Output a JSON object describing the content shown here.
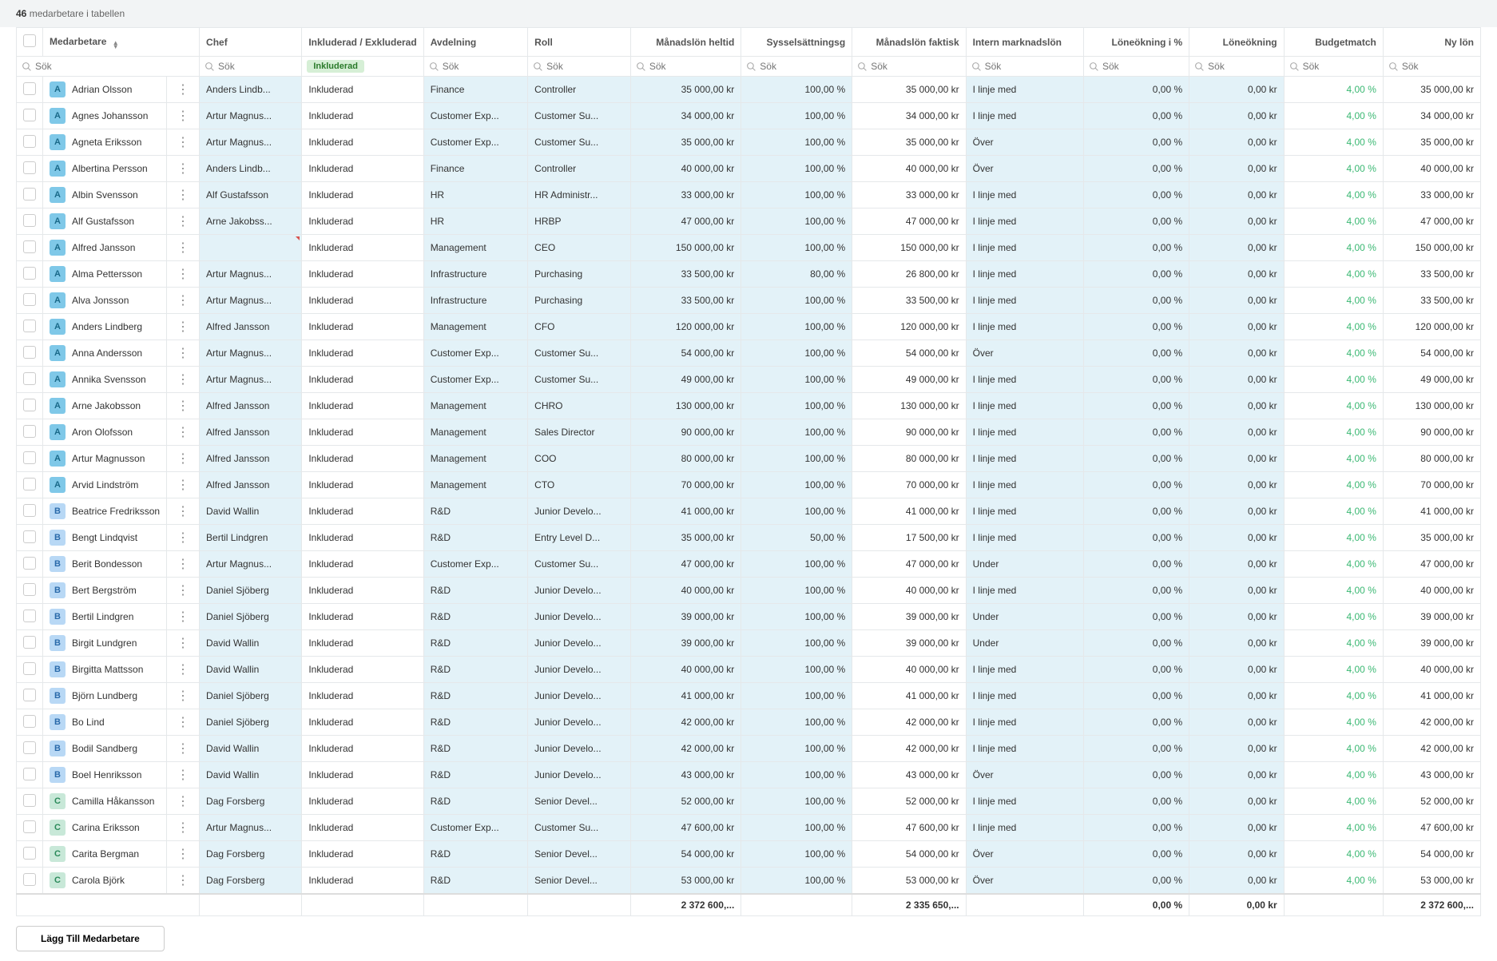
{
  "topbar": {
    "count": "46",
    "text": "medarbetare i tabellen"
  },
  "columns": [
    "Medarbetare",
    "Chef",
    "Inkluderad / Exkluderad",
    "Avdelning",
    "Roll",
    "Månadslön heltid",
    "Sysselsättningsg",
    "Månadslön faktisk",
    "Intern marknadslön",
    "Löneökning i %",
    "Löneökning",
    "Budgetmatch",
    "Ny lön"
  ],
  "search_placeholder": "Sök",
  "include_filter_label": "Inkluderad",
  "add_button": "Lägg Till Medarbetare",
  "totals": {
    "heltid": "2 372 600,...",
    "faktisk": "2 335 650,...",
    "pct": "0,00 %",
    "kr": "0,00 kr",
    "ny": "2 372 600,..."
  },
  "rows": [
    {
      "i": "A",
      "n": "Adrian Olsson",
      "c": "Anders Lindb...",
      "d": "Finance",
      "r": "Controller",
      "h": "35 000,00 kr",
      "s": "100,00 %",
      "f": "35 000,00 kr",
      "m": "I linje med",
      "p": "0,00 %",
      "k": "0,00 kr",
      "b": "4,00 %",
      "ny": "35 000,00 kr"
    },
    {
      "i": "A",
      "n": "Agnes Johansson",
      "c": "Artur Magnus...",
      "d": "Customer Exp...",
      "r": "Customer Su...",
      "h": "34 000,00 kr",
      "s": "100,00 %",
      "f": "34 000,00 kr",
      "m": "I linje med",
      "p": "0,00 %",
      "k": "0,00 kr",
      "b": "4,00 %",
      "ny": "34 000,00 kr"
    },
    {
      "i": "A",
      "n": "Agneta Eriksson",
      "c": "Artur Magnus...",
      "d": "Customer Exp...",
      "r": "Customer Su...",
      "h": "35 000,00 kr",
      "s": "100,00 %",
      "f": "35 000,00 kr",
      "m": "Över",
      "p": "0,00 %",
      "k": "0,00 kr",
      "b": "4,00 %",
      "ny": "35 000,00 kr"
    },
    {
      "i": "A",
      "n": "Albertina Persson",
      "c": "Anders Lindb...",
      "d": "Finance",
      "r": "Controller",
      "h": "40 000,00 kr",
      "s": "100,00 %",
      "f": "40 000,00 kr",
      "m": "Över",
      "p": "0,00 %",
      "k": "0,00 kr",
      "b": "4,00 %",
      "ny": "40 000,00 kr"
    },
    {
      "i": "A",
      "n": "Albin Svensson",
      "c": "Alf Gustafsson",
      "d": "HR",
      "r": "HR Administr...",
      "h": "33 000,00 kr",
      "s": "100,00 %",
      "f": "33 000,00 kr",
      "m": "I linje med",
      "p": "0,00 %",
      "k": "0,00 kr",
      "b": "4,00 %",
      "ny": "33 000,00 kr"
    },
    {
      "i": "A",
      "n": "Alf Gustafsson",
      "c": "Arne Jakobss...",
      "d": "HR",
      "r": "HRBP",
      "h": "47 000,00 kr",
      "s": "100,00 %",
      "f": "47 000,00 kr",
      "m": "I linje med",
      "p": "0,00 %",
      "k": "0,00 kr",
      "b": "4,00 %",
      "ny": "47 000,00 kr"
    },
    {
      "i": "A",
      "n": "Alfred Jansson",
      "c": "",
      "d": "Management",
      "r": "CEO",
      "h": "150 000,00 kr",
      "s": "100,00 %",
      "f": "150 000,00 kr",
      "m": "I linje med",
      "p": "0,00 %",
      "k": "0,00 kr",
      "b": "4,00 %",
      "ny": "150 000,00 kr",
      "ec": true
    },
    {
      "i": "A",
      "n": "Alma Pettersson",
      "c": "Artur Magnus...",
      "d": "Infrastructure",
      "r": "Purchasing",
      "h": "33 500,00 kr",
      "s": "80,00 %",
      "f": "26 800,00 kr",
      "m": "I linje med",
      "p": "0,00 %",
      "k": "0,00 kr",
      "b": "4,00 %",
      "ny": "33 500,00 kr"
    },
    {
      "i": "A",
      "n": "Alva Jonsson",
      "c": "Artur Magnus...",
      "d": "Infrastructure",
      "r": "Purchasing",
      "h": "33 500,00 kr",
      "s": "100,00 %",
      "f": "33 500,00 kr",
      "m": "I linje med",
      "p": "0,00 %",
      "k": "0,00 kr",
      "b": "4,00 %",
      "ny": "33 500,00 kr"
    },
    {
      "i": "A",
      "n": "Anders Lindberg",
      "c": "Alfred Jansson",
      "d": "Management",
      "r": "CFO",
      "h": "120 000,00 kr",
      "s": "100,00 %",
      "f": "120 000,00 kr",
      "m": "I linje med",
      "p": "0,00 %",
      "k": "0,00 kr",
      "b": "4,00 %",
      "ny": "120 000,00 kr"
    },
    {
      "i": "A",
      "n": "Anna Andersson",
      "c": "Artur Magnus...",
      "d": "Customer Exp...",
      "r": "Customer Su...",
      "h": "54 000,00 kr",
      "s": "100,00 %",
      "f": "54 000,00 kr",
      "m": "Över",
      "p": "0,00 %",
      "k": "0,00 kr",
      "b": "4,00 %",
      "ny": "54 000,00 kr"
    },
    {
      "i": "A",
      "n": "Annika Svensson",
      "c": "Artur Magnus...",
      "d": "Customer Exp...",
      "r": "Customer Su...",
      "h": "49 000,00 kr",
      "s": "100,00 %",
      "f": "49 000,00 kr",
      "m": "I linje med",
      "p": "0,00 %",
      "k": "0,00 kr",
      "b": "4,00 %",
      "ny": "49 000,00 kr"
    },
    {
      "i": "A",
      "n": "Arne Jakobsson",
      "c": "Alfred Jansson",
      "d": "Management",
      "r": "CHRO",
      "h": "130 000,00 kr",
      "s": "100,00 %",
      "f": "130 000,00 kr",
      "m": "I linje med",
      "p": "0,00 %",
      "k": "0,00 kr",
      "b": "4,00 %",
      "ny": "130 000,00 kr"
    },
    {
      "i": "A",
      "n": "Aron Olofsson",
      "c": "Alfred Jansson",
      "d": "Management",
      "r": "Sales Director",
      "h": "90 000,00 kr",
      "s": "100,00 %",
      "f": "90 000,00 kr",
      "m": "I linje med",
      "p": "0,00 %",
      "k": "0,00 kr",
      "b": "4,00 %",
      "ny": "90 000,00 kr"
    },
    {
      "i": "A",
      "n": "Artur Magnusson",
      "c": "Alfred Jansson",
      "d": "Management",
      "r": "COO",
      "h": "80 000,00 kr",
      "s": "100,00 %",
      "f": "80 000,00 kr",
      "m": "I linje med",
      "p": "0,00 %",
      "k": "0,00 kr",
      "b": "4,00 %",
      "ny": "80 000,00 kr"
    },
    {
      "i": "A",
      "n": "Arvid Lindström",
      "c": "Alfred Jansson",
      "d": "Management",
      "r": "CTO",
      "h": "70 000,00 kr",
      "s": "100,00 %",
      "f": "70 000,00 kr",
      "m": "I linje med",
      "p": "0,00 %",
      "k": "0,00 kr",
      "b": "4,00 %",
      "ny": "70 000,00 kr"
    },
    {
      "i": "B",
      "n": "Beatrice Fredriksson",
      "c": "David Wallin",
      "d": "R&D",
      "r": "Junior Develo...",
      "h": "41 000,00 kr",
      "s": "100,00 %",
      "f": "41 000,00 kr",
      "m": "I linje med",
      "p": "0,00 %",
      "k": "0,00 kr",
      "b": "4,00 %",
      "ny": "41 000,00 kr"
    },
    {
      "i": "B",
      "n": "Bengt Lindqvist",
      "c": "Bertil Lindgren",
      "d": "R&D",
      "r": "Entry Level D...",
      "h": "35 000,00 kr",
      "s": "50,00 %",
      "f": "17 500,00 kr",
      "m": "I linje med",
      "p": "0,00 %",
      "k": "0,00 kr",
      "b": "4,00 %",
      "ny": "35 000,00 kr"
    },
    {
      "i": "B",
      "n": "Berit Bondesson",
      "c": "Artur Magnus...",
      "d": "Customer Exp...",
      "r": "Customer Su...",
      "h": "47 000,00 kr",
      "s": "100,00 %",
      "f": "47 000,00 kr",
      "m": "Under",
      "p": "0,00 %",
      "k": "0,00 kr",
      "b": "4,00 %",
      "ny": "47 000,00 kr"
    },
    {
      "i": "B",
      "n": "Bert Bergström",
      "c": "Daniel Sjöberg",
      "d": "R&D",
      "r": "Junior Develo...",
      "h": "40 000,00 kr",
      "s": "100,00 %",
      "f": "40 000,00 kr",
      "m": "I linje med",
      "p": "0,00 %",
      "k": "0,00 kr",
      "b": "4,00 %",
      "ny": "40 000,00 kr"
    },
    {
      "i": "B",
      "n": "Bertil Lindgren",
      "c": "Daniel Sjöberg",
      "d": "R&D",
      "r": "Junior Develo...",
      "h": "39 000,00 kr",
      "s": "100,00 %",
      "f": "39 000,00 kr",
      "m": "Under",
      "p": "0,00 %",
      "k": "0,00 kr",
      "b": "4,00 %",
      "ny": "39 000,00 kr"
    },
    {
      "i": "B",
      "n": "Birgit Lundgren",
      "c": "David Wallin",
      "d": "R&D",
      "r": "Junior Develo...",
      "h": "39 000,00 kr",
      "s": "100,00 %",
      "f": "39 000,00 kr",
      "m": "Under",
      "p": "0,00 %",
      "k": "0,00 kr",
      "b": "4,00 %",
      "ny": "39 000,00 kr"
    },
    {
      "i": "B",
      "n": "Birgitta Mattsson",
      "c": "David Wallin",
      "d": "R&D",
      "r": "Junior Develo...",
      "h": "40 000,00 kr",
      "s": "100,00 %",
      "f": "40 000,00 kr",
      "m": "I linje med",
      "p": "0,00 %",
      "k": "0,00 kr",
      "b": "4,00 %",
      "ny": "40 000,00 kr"
    },
    {
      "i": "B",
      "n": "Björn Lundberg",
      "c": "Daniel Sjöberg",
      "d": "R&D",
      "r": "Junior Develo...",
      "h": "41 000,00 kr",
      "s": "100,00 %",
      "f": "41 000,00 kr",
      "m": "I linje med",
      "p": "0,00 %",
      "k": "0,00 kr",
      "b": "4,00 %",
      "ny": "41 000,00 kr"
    },
    {
      "i": "B",
      "n": "Bo Lind",
      "c": "Daniel Sjöberg",
      "d": "R&D",
      "r": "Junior Develo...",
      "h": "42 000,00 kr",
      "s": "100,00 %",
      "f": "42 000,00 kr",
      "m": "I linje med",
      "p": "0,00 %",
      "k": "0,00 kr",
      "b": "4,00 %",
      "ny": "42 000,00 kr"
    },
    {
      "i": "B",
      "n": "Bodil Sandberg",
      "c": "David Wallin",
      "d": "R&D",
      "r": "Junior Develo...",
      "h": "42 000,00 kr",
      "s": "100,00 %",
      "f": "42 000,00 kr",
      "m": "I linje med",
      "p": "0,00 %",
      "k": "0,00 kr",
      "b": "4,00 %",
      "ny": "42 000,00 kr"
    },
    {
      "i": "B",
      "n": "Boel Henriksson",
      "c": "David Wallin",
      "d": "R&D",
      "r": "Junior Develo...",
      "h": "43 000,00 kr",
      "s": "100,00 %",
      "f": "43 000,00 kr",
      "m": "Över",
      "p": "0,00 %",
      "k": "0,00 kr",
      "b": "4,00 %",
      "ny": "43 000,00 kr"
    },
    {
      "i": "C",
      "n": "Camilla Håkansson",
      "c": "Dag Forsberg",
      "d": "R&D",
      "r": "Senior Devel...",
      "h": "52 000,00 kr",
      "s": "100,00 %",
      "f": "52 000,00 kr",
      "m": "I linje med",
      "p": "0,00 %",
      "k": "0,00 kr",
      "b": "4,00 %",
      "ny": "52 000,00 kr"
    },
    {
      "i": "C",
      "n": "Carina Eriksson",
      "c": "Artur Magnus...",
      "d": "Customer Exp...",
      "r": "Customer Su...",
      "h": "47 600,00 kr",
      "s": "100,00 %",
      "f": "47 600,00 kr",
      "m": "I linje med",
      "p": "0,00 %",
      "k": "0,00 kr",
      "b": "4,00 %",
      "ny": "47 600,00 kr"
    },
    {
      "i": "C",
      "n": "Carita Bergman",
      "c": "Dag Forsberg",
      "d": "R&D",
      "r": "Senior Devel...",
      "h": "54 000,00 kr",
      "s": "100,00 %",
      "f": "54 000,00 kr",
      "m": "Över",
      "p": "0,00 %",
      "k": "0,00 kr",
      "b": "4,00 %",
      "ny": "54 000,00 kr"
    },
    {
      "i": "C",
      "n": "Carola Björk",
      "c": "Dag Forsberg",
      "d": "R&D",
      "r": "Senior Devel...",
      "h": "53 000,00 kr",
      "s": "100,00 %",
      "f": "53 000,00 kr",
      "m": "Över",
      "p": "0,00 %",
      "k": "0,00 kr",
      "b": "4,00 %",
      "ny": "53 000,00 kr"
    }
  ]
}
